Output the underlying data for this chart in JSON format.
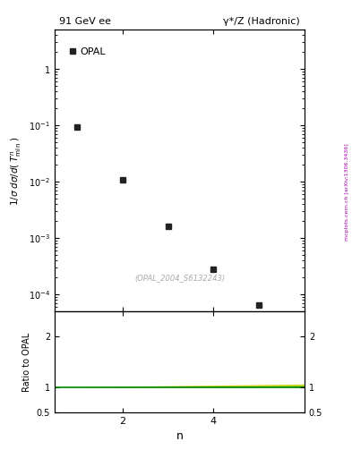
{
  "title_left": "91 GeV ee",
  "title_right": "γ*/Z (Hadronic)",
  "xlabel": "n",
  "ylabel_bottom": "Ratio to OPAL",
  "watermark": "(OPAL_2004_S6132243)",
  "side_label": "mcplots.cern.ch [arXiv:1306.3436]",
  "data_x": [
    1,
    2,
    3,
    4,
    5
  ],
  "data_y": [
    0.095,
    0.011,
    0.0016,
    0.00028,
    6.5e-05
  ],
  "legend_label": "OPAL",
  "marker_color": "#222222",
  "marker_size": 5,
  "ylim_top_lo": 5e-05,
  "ylim_top_hi": 5.0,
  "xlim_lo": 0.5,
  "xlim_hi": 6.0,
  "ylim_bottom_lo": 0.5,
  "ylim_bottom_hi": 2.5,
  "ratio_line_y": 1.0,
  "ratio_band_color_inner": "#00cc00",
  "ratio_band_color_outer": "#cccc00",
  "ratio_line_color": "#008800",
  "background_color": "#ffffff",
  "tick_labelsize": 8,
  "side_label_color": "#aa00aa"
}
